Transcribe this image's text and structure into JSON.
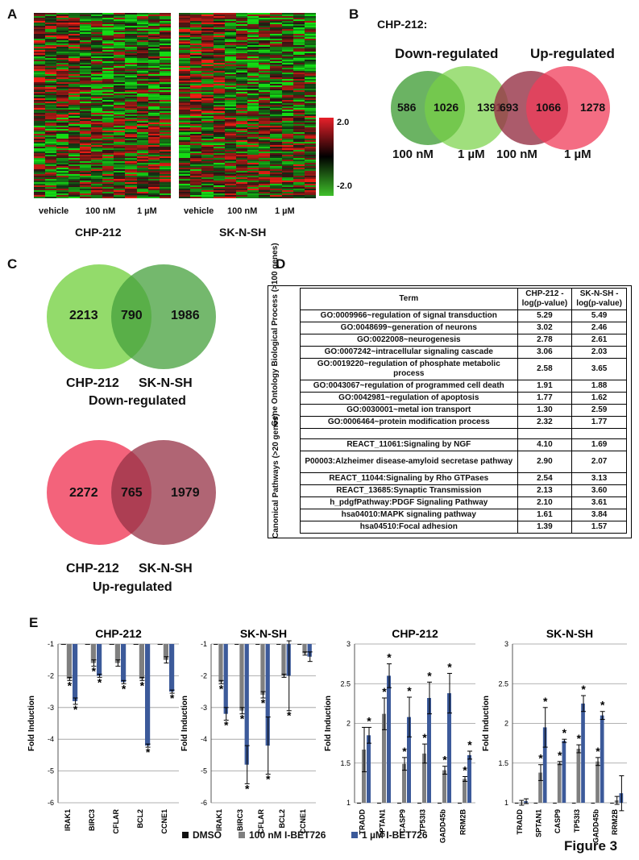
{
  "panels": {
    "A": "A",
    "B": "B",
    "C": "C",
    "D": "D",
    "E": "E"
  },
  "panel_a": {
    "heatmaps": [
      {
        "cell_line": "CHP-212",
        "columns": [
          "vehicle",
          "100 nM",
          "1 µM"
        ]
      },
      {
        "cell_line": "SK-N-SH",
        "columns": [
          "vehicle",
          "100 nM",
          "1 µM"
        ]
      }
    ],
    "colorbar": {
      "max": "2.0",
      "min": "-2.0",
      "high_color": "#e8202a",
      "mid_color": "#000000",
      "low_color": "#3fc02a"
    }
  },
  "panel_b": {
    "title": "CHP-212:",
    "down": {
      "title": "Down-regulated",
      "left": "586",
      "center": "1026",
      "right": "1391",
      "label_left": "100 nM",
      "label_right": "1 µM"
    },
    "up": {
      "title": "Up-regulated",
      "left": "693",
      "center": "1066",
      "right": "1278",
      "label_left": "100 nM",
      "label_right": "1 µM"
    }
  },
  "panel_c": {
    "down": {
      "left": "2213",
      "center": "790",
      "right": "1986",
      "label_left": "CHP-212",
      "label_right": "SK-N-SH",
      "caption": "Down-regulated"
    },
    "up": {
      "left": "2272",
      "center": "765",
      "right": "1979",
      "label_left": "CHP-212",
      "label_right": "SK-N-SH",
      "caption": "Up-regulated"
    }
  },
  "panel_d": {
    "header": {
      "term": "Term",
      "col1": "CHP-212 -log(p-value)",
      "col2": "SK-N-SH -log(p-value)"
    },
    "group1_label": "Gene Ontology Biological Process (>100 genes)",
    "group2_label": "Canonical Pathways (>20 genes)",
    "group1": [
      {
        "term": "GO:0009966~regulation of signal transduction",
        "a": "5.29",
        "b": "5.49"
      },
      {
        "term": "GO:0048699~generation of neurons",
        "a": "3.02",
        "b": "2.46"
      },
      {
        "term": "GO:0022008~neurogenesis",
        "a": "2.78",
        "b": "2.61"
      },
      {
        "term": "GO:0007242~intracellular signaling cascade",
        "a": "3.06",
        "b": "2.03"
      },
      {
        "term": "GO:0019220~regulation of phosphate metabolic process",
        "a": "2.58",
        "b": "3.65"
      },
      {
        "term": "GO:0043067~regulation of programmed cell death",
        "a": "1.91",
        "b": "1.88"
      },
      {
        "term": "GO:0042981~regulation of apoptosis",
        "a": "1.77",
        "b": "1.62"
      },
      {
        "term": "GO:0030001~metal ion transport",
        "a": "1.30",
        "b": "2.59"
      },
      {
        "term": "GO:0006464~protein modification process",
        "a": "2.32",
        "b": "1.77"
      }
    ],
    "group2": [
      {
        "term": "REACT_11061:Signaling by NGF",
        "a": "4.10",
        "b": "1.69"
      },
      {
        "term": "P00003:Alzheimer disease-amyloid secretase pathway",
        "a": "2.90",
        "b": "2.07"
      },
      {
        "term": "REACT_11044:Signaling by Rho GTPases",
        "a": "2.54",
        "b": "3.13"
      },
      {
        "term": "REACT_13685:Synaptic Transmission",
        "a": "2.13",
        "b": "3.60"
      },
      {
        "term": "h_pdgfPathway:PDGF Signaling Pathway",
        "a": "2.10",
        "b": "3.61"
      },
      {
        "term": "hsa04010:MAPK signaling pathway",
        "a": "1.61",
        "b": "3.84"
      },
      {
        "term": "hsa04510:Focal adhesion",
        "a": "1.39",
        "b": "1.57"
      }
    ]
  },
  "chart_data": [
    {
      "type": "bar",
      "title": "CHP-212",
      "ylabel": "Fold Induction",
      "ylim": [
        -6,
        -1
      ],
      "yticks": [
        "-1",
        "-2",
        "-3",
        "-4",
        "-5",
        "-6"
      ],
      "categories": [
        "IRAK1",
        "BIRC3",
        "CFLAR",
        "BCL2",
        "CCNE1"
      ],
      "series": [
        {
          "name": "DMSO",
          "values": [
            -1,
            -1,
            -1,
            -1,
            -1
          ]
        },
        {
          "name": "100 nM I-BET726",
          "values": [
            -2.1,
            -1.6,
            -1.6,
            -2.1,
            -1.5
          ]
        },
        {
          "name": "1 µM I-BET726",
          "values": [
            -2.8,
            -2.0,
            -2.2,
            -4.2,
            -2.5
          ]
        }
      ],
      "errors": [
        [
          0,
          0,
          0,
          0,
          0
        ],
        [
          0.05,
          0.1,
          0.1,
          0.05,
          0.1
        ],
        [
          0.1,
          0.05,
          0.05,
          0.05,
          0.05
        ]
      ],
      "stars": [
        [
          0,
          0,
          0,
          0,
          0
        ],
        [
          1,
          1,
          0,
          1,
          0
        ],
        [
          1,
          1,
          1,
          1,
          1
        ]
      ]
    },
    {
      "type": "bar",
      "title": "SK-N-SH",
      "ylabel": "Fold Induction",
      "ylim": [
        -6,
        -1
      ],
      "yticks": [
        "-1",
        "-2",
        "-3",
        "-4",
        "-5",
        "-6"
      ],
      "categories": [
        "IRAK1",
        "BIRC3",
        "CFLAR",
        "BCL2",
        "CCNE1"
      ],
      "series": [
        {
          "name": "DMSO",
          "values": [
            -1,
            -1,
            -1,
            -1,
            -1
          ]
        },
        {
          "name": "100 nM I-BET726",
          "values": [
            -2.2,
            -3.1,
            -2.6,
            -2.0,
            -1.3
          ]
        },
        {
          "name": "1 µM I-BET726",
          "values": [
            -3.2,
            -4.8,
            -4.2,
            -2.0,
            -1.4
          ]
        }
      ],
      "errors": [
        [
          0,
          0,
          0,
          0,
          0
        ],
        [
          0.05,
          0.1,
          0.1,
          0.05,
          0.05
        ],
        [
          0.2,
          0.6,
          0.9,
          1.1,
          0.15
        ]
      ],
      "stars": [
        [
          0,
          0,
          0,
          0,
          0
        ],
        [
          1,
          1,
          1,
          0,
          0
        ],
        [
          1,
          1,
          1,
          1,
          0
        ]
      ]
    },
    {
      "type": "bar",
      "title": "CHP-212",
      "ylabel": "Fold Induction",
      "ylim": [
        1,
        3
      ],
      "yticks": [
        "1",
        "1.5",
        "2",
        "2.5",
        "3"
      ],
      "categories": [
        "TRADD",
        "SPTAN1",
        "CASP9",
        "TP53I3",
        "GADD45b",
        "RRM2B"
      ],
      "series": [
        {
          "name": "DMSO",
          "values": [
            1,
            1,
            1,
            1,
            1,
            1
          ]
        },
        {
          "name": "100 nM I-BET726",
          "values": [
            1.67,
            2.12,
            1.49,
            1.62,
            1.41,
            1.3
          ]
        },
        {
          "name": "1 µM I-BET726",
          "values": [
            1.85,
            2.6,
            2.08,
            2.32,
            2.38,
            1.6
          ]
        }
      ],
      "errors": [
        [
          0,
          0,
          0,
          0,
          0,
          0
        ],
        [
          0.28,
          0.2,
          0.08,
          0.12,
          0.05,
          0.03
        ],
        [
          0.1,
          0.15,
          0.25,
          0.2,
          0.25,
          0.05
        ]
      ],
      "stars": [
        [
          0,
          0,
          0,
          0,
          0,
          0
        ],
        [
          0,
          1,
          1,
          1,
          1,
          1
        ],
        [
          1,
          1,
          1,
          1,
          1,
          1
        ]
      ]
    },
    {
      "type": "bar",
      "title": "SK-N-SH",
      "ylabel": "Fold Induction",
      "ylim": [
        1,
        3
      ],
      "yticks": [
        "1",
        "1.5",
        "2",
        "2.5",
        "3"
      ],
      "categories": [
        "TRADD",
        "SPTAN1",
        "CASP9",
        "TP53I3",
        "GADD45b",
        "RRM2B"
      ],
      "series": [
        {
          "name": "DMSO",
          "values": [
            1,
            1,
            1,
            1,
            1,
            1
          ]
        },
        {
          "name": "100 nM I-BET726",
          "values": [
            1.0,
            1.38,
            1.5,
            1.68,
            1.52,
            1.03
          ]
        },
        {
          "name": "1 µM I-BET726",
          "values": [
            1.02,
            1.95,
            1.78,
            2.25,
            2.1,
            1.12
          ]
        }
      ],
      "errors": [
        [
          0,
          0,
          0,
          0,
          0,
          0
        ],
        [
          0.03,
          0.1,
          0.02,
          0.05,
          0.05,
          0.05
        ],
        [
          0.03,
          0.25,
          0.02,
          0.1,
          0.05,
          0.22
        ]
      ],
      "stars": [
        [
          0,
          0,
          0,
          0,
          0,
          0
        ],
        [
          0,
          1,
          1,
          1,
          1,
          0
        ],
        [
          0,
          1,
          1,
          1,
          1,
          0
        ]
      ]
    }
  ],
  "legend": [
    {
      "label": "DMSO",
      "color": "#111111"
    },
    {
      "label": "100 nM I-BET726",
      "color": "#7f7f7f"
    },
    {
      "label": "1 µM I-BET726",
      "color": "#3c5a9a"
    }
  ],
  "figure_label": "Figure 3"
}
